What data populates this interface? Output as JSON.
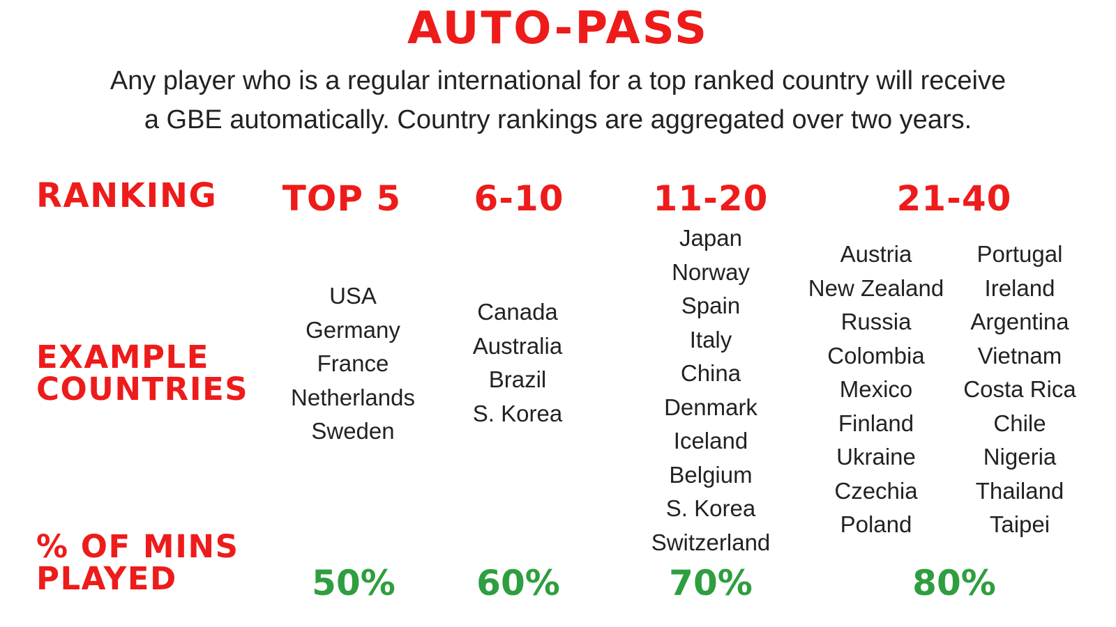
{
  "title": "AUTO-PASS",
  "subtitle_line1": "Any player who is a regular international for a top ranked country will receive",
  "subtitle_line2": "a GBE automatically. Country rankings are aggregated over two years.",
  "labels": {
    "ranking": "RANKING",
    "example_countries_1": "EXAMPLE",
    "example_countries_2": "COUNTRIES",
    "mins_played_1": "% OF MINS",
    "mins_played_2": "PLAYED"
  },
  "columns": [
    {
      "header": "TOP 5",
      "countries": [
        "USA",
        "Germany",
        "France",
        "Netherlands",
        "Sweden"
      ],
      "percent": "50%"
    },
    {
      "header": "6-10",
      "countries": [
        "Canada",
        "Australia",
        "Brazil",
        "S. Korea"
      ],
      "percent": "60%"
    },
    {
      "header": "11-20",
      "countries": [
        "Japan",
        "Norway",
        "Spain",
        "Italy",
        "China",
        "Denmark",
        "Iceland",
        "Belgium",
        "S. Korea",
        "Switzerland"
      ],
      "percent": "70%"
    },
    {
      "header": "21-40",
      "countries_a": [
        "Austria",
        "New Zealand",
        "Russia",
        "Colombia",
        "Mexico",
        "Finland",
        "Ukraine",
        "Czechia",
        "Poland"
      ],
      "countries_b": [
        "Portugal",
        "Ireland",
        "Argentina",
        "Vietnam",
        "Costa Rica",
        "Chile",
        "Nigeria",
        "Thailand",
        "Taipei"
      ],
      "percent": "80%"
    }
  ],
  "colors": {
    "heading_red": "#ee1b1b",
    "percent_green": "#2e9e3f",
    "body_text": "#222222"
  }
}
